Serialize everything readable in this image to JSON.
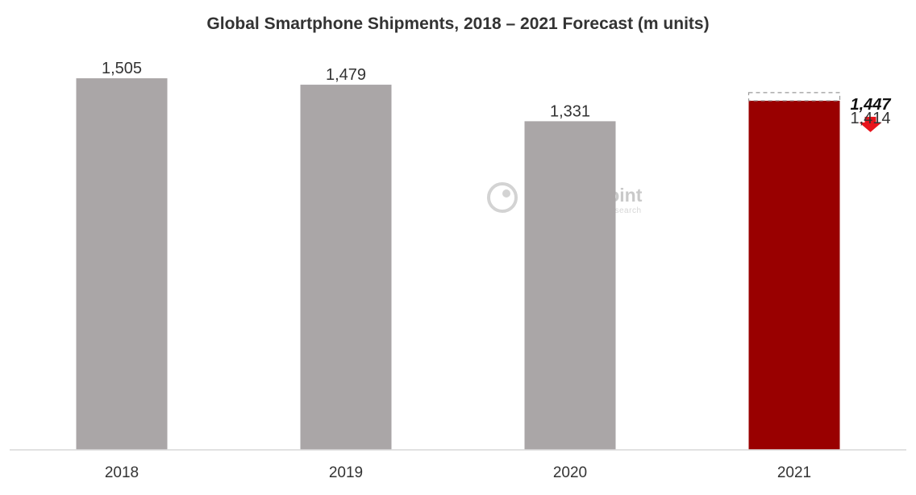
{
  "chart_data": {
    "type": "bar",
    "title": "Global Smartphone Shipments, 2018 – 2021 Forecast (m units)",
    "xlabel": "",
    "ylabel": "",
    "ylim": [
      0,
      1600
    ],
    "grid": false,
    "legend": "none",
    "categories": [
      "2018",
      "2019",
      "2020",
      "2021"
    ],
    "values": [
      1505,
      1479,
      1331,
      1414
    ],
    "value_labels": [
      "1,505",
      "1,479",
      "1,331",
      "1,414"
    ],
    "bar_colors": [
      "#aaa6a7",
      "#aaa6a7",
      "#aaa6a7",
      "#990000"
    ],
    "previous_forecast": {
      "category": "2021",
      "value": 1447,
      "label": "1,447",
      "revised_label": "1,414",
      "arrow_color": "#e8141c"
    }
  },
  "watermark": {
    "name": "Counterpoint",
    "tagline": "Technology Market Research"
  }
}
